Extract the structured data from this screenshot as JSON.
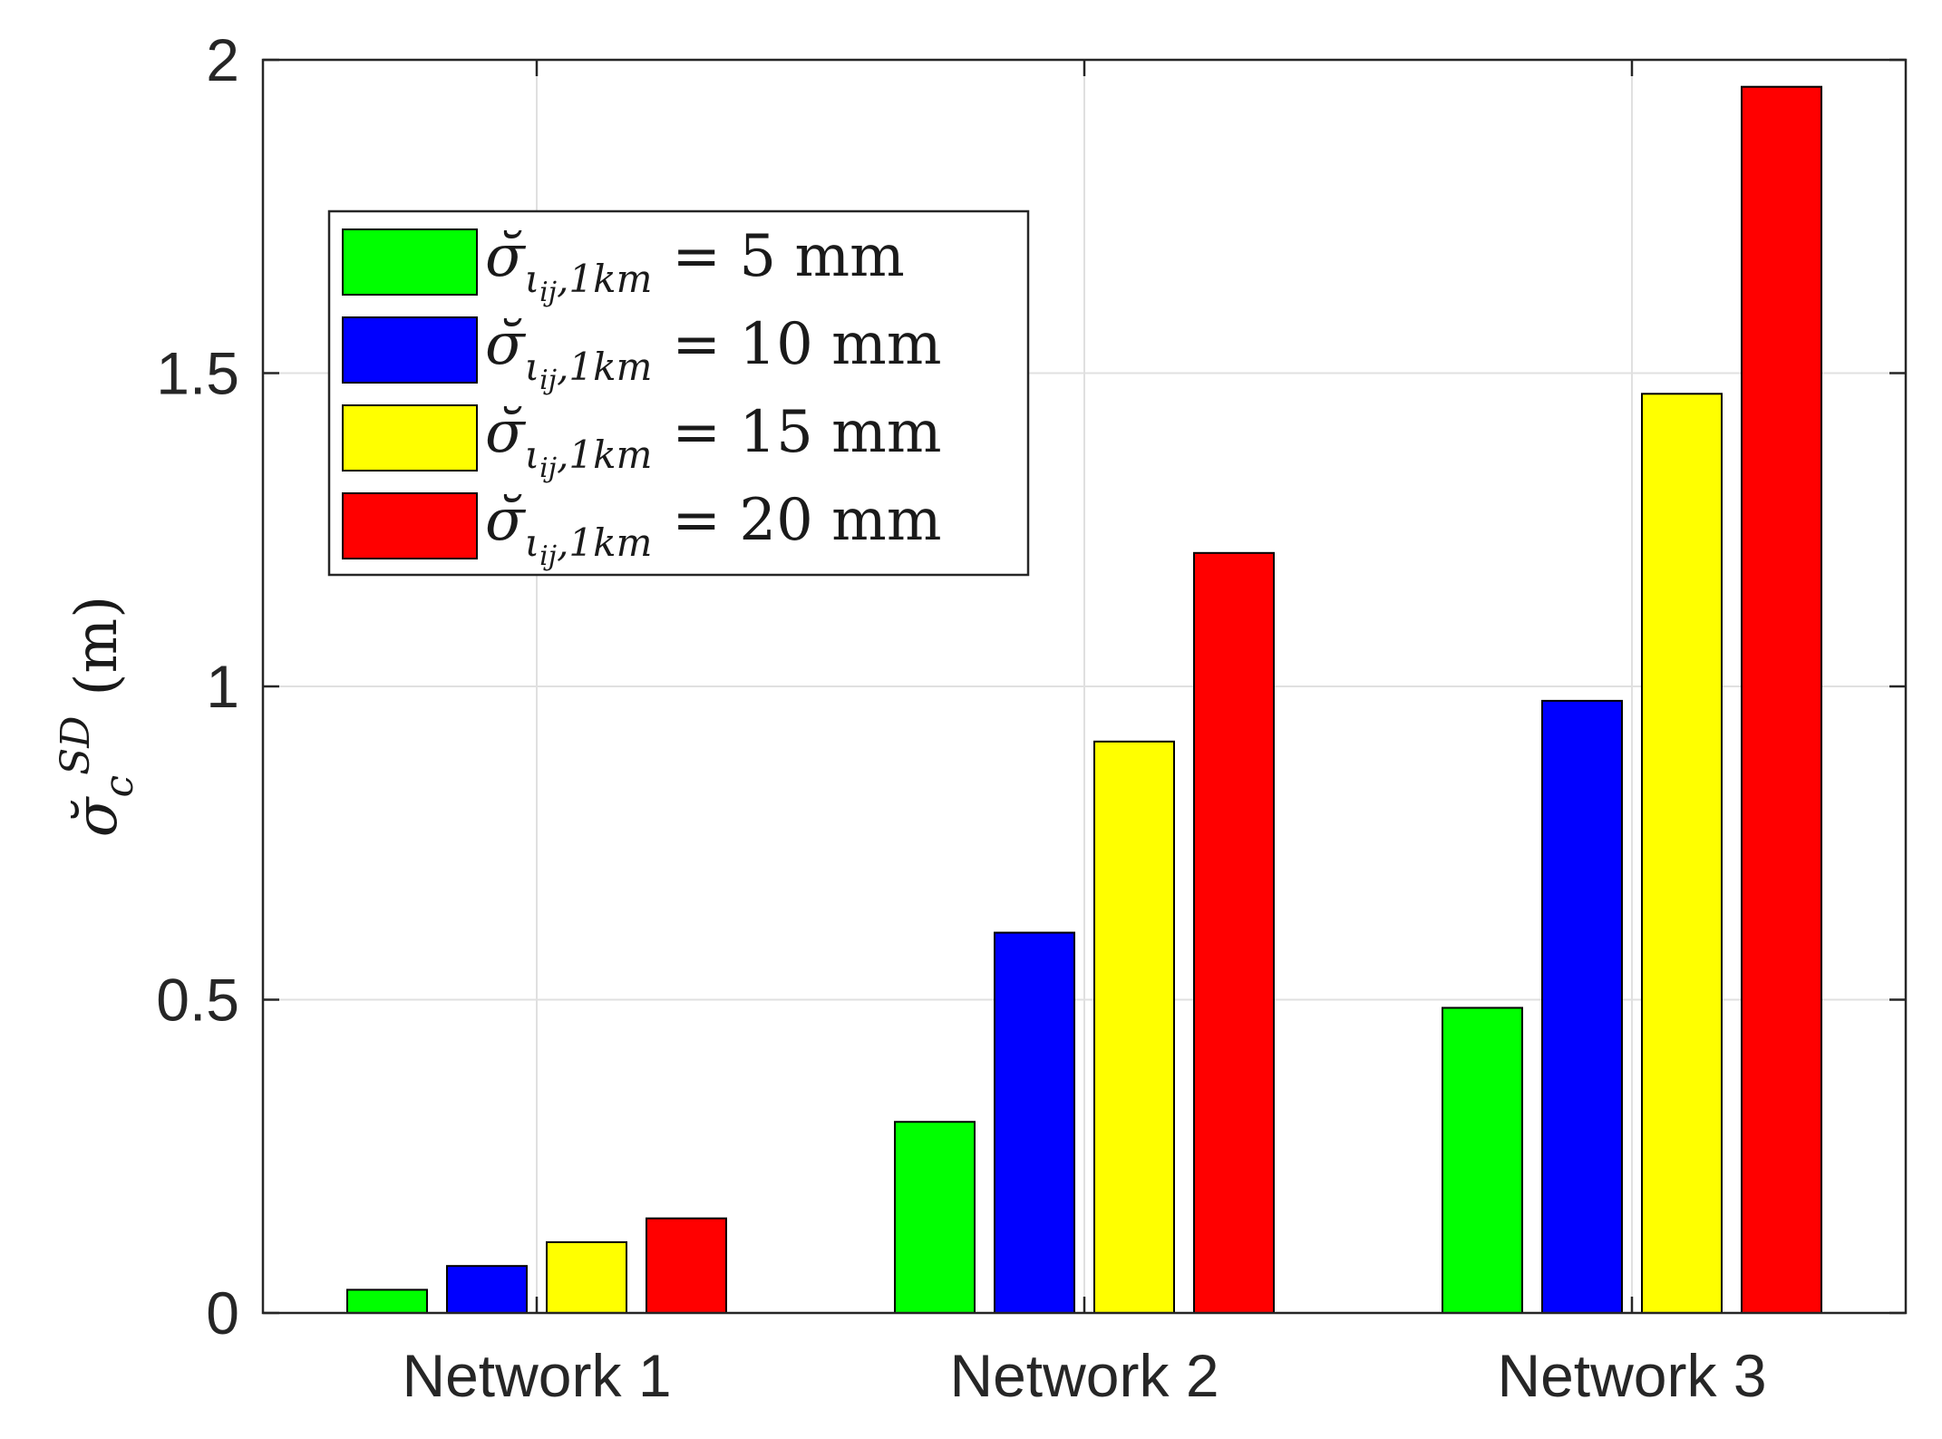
{
  "chart_data": {
    "type": "bar",
    "categories": [
      "Network 1",
      "Network 2",
      "Network 3"
    ],
    "series": [
      {
        "name": "σ̆_{ι_{ij},1km} = 5 mm",
        "color": "#00ff00",
        "values": [
          0.037,
          0.305,
          0.487
        ]
      },
      {
        "name": "σ̆_{ι_{ij},1km} = 10 mm",
        "color": "#0000ff",
        "values": [
          0.075,
          0.607,
          0.977
        ]
      },
      {
        "name": "σ̆_{ι_{ij},1km} = 15 mm",
        "color": "#ffff00",
        "values": [
          0.113,
          0.912,
          1.467
        ]
      },
      {
        "name": "σ̆_{ι_{ij},1km} = 20 mm",
        "color": "#ff0000",
        "values": [
          0.151,
          1.213,
          1.957
        ]
      }
    ],
    "legend": {
      "entries": [
        {
          "symbol": "σ̆",
          "subscript_base": "ι",
          "subscript_index": "ij",
          "subscript_rest": ",1km",
          "equation": "= 5 mm"
        },
        {
          "symbol": "σ̆",
          "subscript_base": "ι",
          "subscript_index": "ij",
          "subscript_rest": ",1km",
          "equation": "= 10 mm"
        },
        {
          "symbol": "σ̆",
          "subscript_base": "ι",
          "subscript_index": "ij",
          "subscript_rest": ",1km",
          "equation": "= 15 mm"
        },
        {
          "symbol": "σ̆",
          "subscript_base": "ι",
          "subscript_index": "ij",
          "subscript_rest": ",1km",
          "equation": "= 20 mm"
        }
      ],
      "position": "upper-left"
    },
    "ylabel": {
      "symbol": "σ̆",
      "superscript": "SD",
      "subscript": "c",
      "unit": "(m)"
    },
    "xlabel": "",
    "title": "",
    "ylim": [
      0,
      2
    ],
    "yticks": [
      0,
      0.5,
      1,
      1.5,
      2
    ],
    "ytick_labels": [
      "0",
      "0.5",
      "1",
      "1.5",
      "2"
    ],
    "grid": true,
    "colors": {
      "axis": "#262626",
      "grid": "#e0e0e0",
      "bar_edge": "#000000"
    }
  }
}
